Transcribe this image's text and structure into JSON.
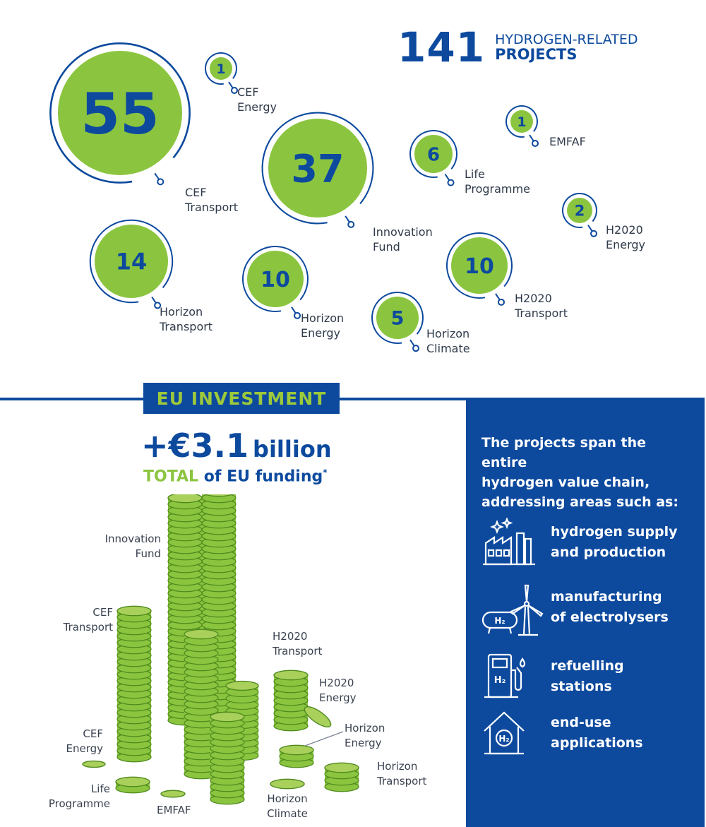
{
  "header": {
    "total": "141",
    "caption_line1": "HYDROGEN-RELATED",
    "caption_line2": "PROJECTS"
  },
  "bubbles": [
    {
      "value": "55",
      "label_line1": "CEF",
      "label_line2": "Transport"
    },
    {
      "value": "1",
      "label_line1": "CEF",
      "label_line2": "Energy"
    },
    {
      "value": "37",
      "label_line1": "Innovation",
      "label_line2": "Fund"
    },
    {
      "value": "6",
      "label_line1": "Life",
      "label_line2": "Programme"
    },
    {
      "value": "1",
      "label_line1": "EMFAF",
      "label_line2": ""
    },
    {
      "value": "2",
      "label_line1": "H2020",
      "label_line2": "Energy"
    },
    {
      "value": "14",
      "label_line1": "Horizon",
      "label_line2": "Transport"
    },
    {
      "value": "10",
      "label_line1": "Horizon",
      "label_line2": "Energy"
    },
    {
      "value": "10",
      "label_line1": "H2020",
      "label_line2": "Transport"
    },
    {
      "value": "5",
      "label_line1": "Horizon",
      "label_line2": "Climate"
    }
  ],
  "investment": {
    "tag": "EU INVESTMENT",
    "amount": "+€3.1",
    "unit": "billion",
    "total_word": "TOTAL",
    "sub_rest": "of EU funding",
    "footnote_mark": "*"
  },
  "coin_labels": [
    {
      "line1": "Innovation",
      "line2": "Fund"
    },
    {
      "line1": "CEF",
      "line2": "Transport"
    },
    {
      "line1": "H2020",
      "line2": "Transport"
    },
    {
      "line1": "H2020",
      "line2": "Energy"
    },
    {
      "line1": "Horizon",
      "line2": "Energy"
    },
    {
      "line1": "CEF",
      "line2": "Energy"
    },
    {
      "line1": "Horizon",
      "line2": "Transport"
    },
    {
      "line1": "Life",
      "line2": "Programme"
    },
    {
      "line1": "EMFAF",
      "line2": ""
    },
    {
      "line1": "Horizon",
      "line2": "Climate"
    }
  ],
  "panel": {
    "intro_1": "The projects span the entire",
    "intro_2": "hydrogen value chain,",
    "intro_3": "addressing areas such as:",
    "items": [
      {
        "icon": "factory-icon",
        "line1": "hydrogen supply",
        "line2": "and production"
      },
      {
        "icon": "electrolyser-wind-icon",
        "line1": "manufacturing",
        "line2": "of electrolysers"
      },
      {
        "icon": "fuel-pump-icon",
        "line1": "refuelling",
        "line2": "stations"
      },
      {
        "icon": "house-h2-icon",
        "line1": "end-use",
        "line2": "applications"
      }
    ],
    "h2_symbol": "H₂"
  },
  "colors": {
    "navy": "#0d4a9e",
    "green": "#8bc53f",
    "coin_edge": "#4f8a1e",
    "coin_top": "#a9d05a"
  }
}
